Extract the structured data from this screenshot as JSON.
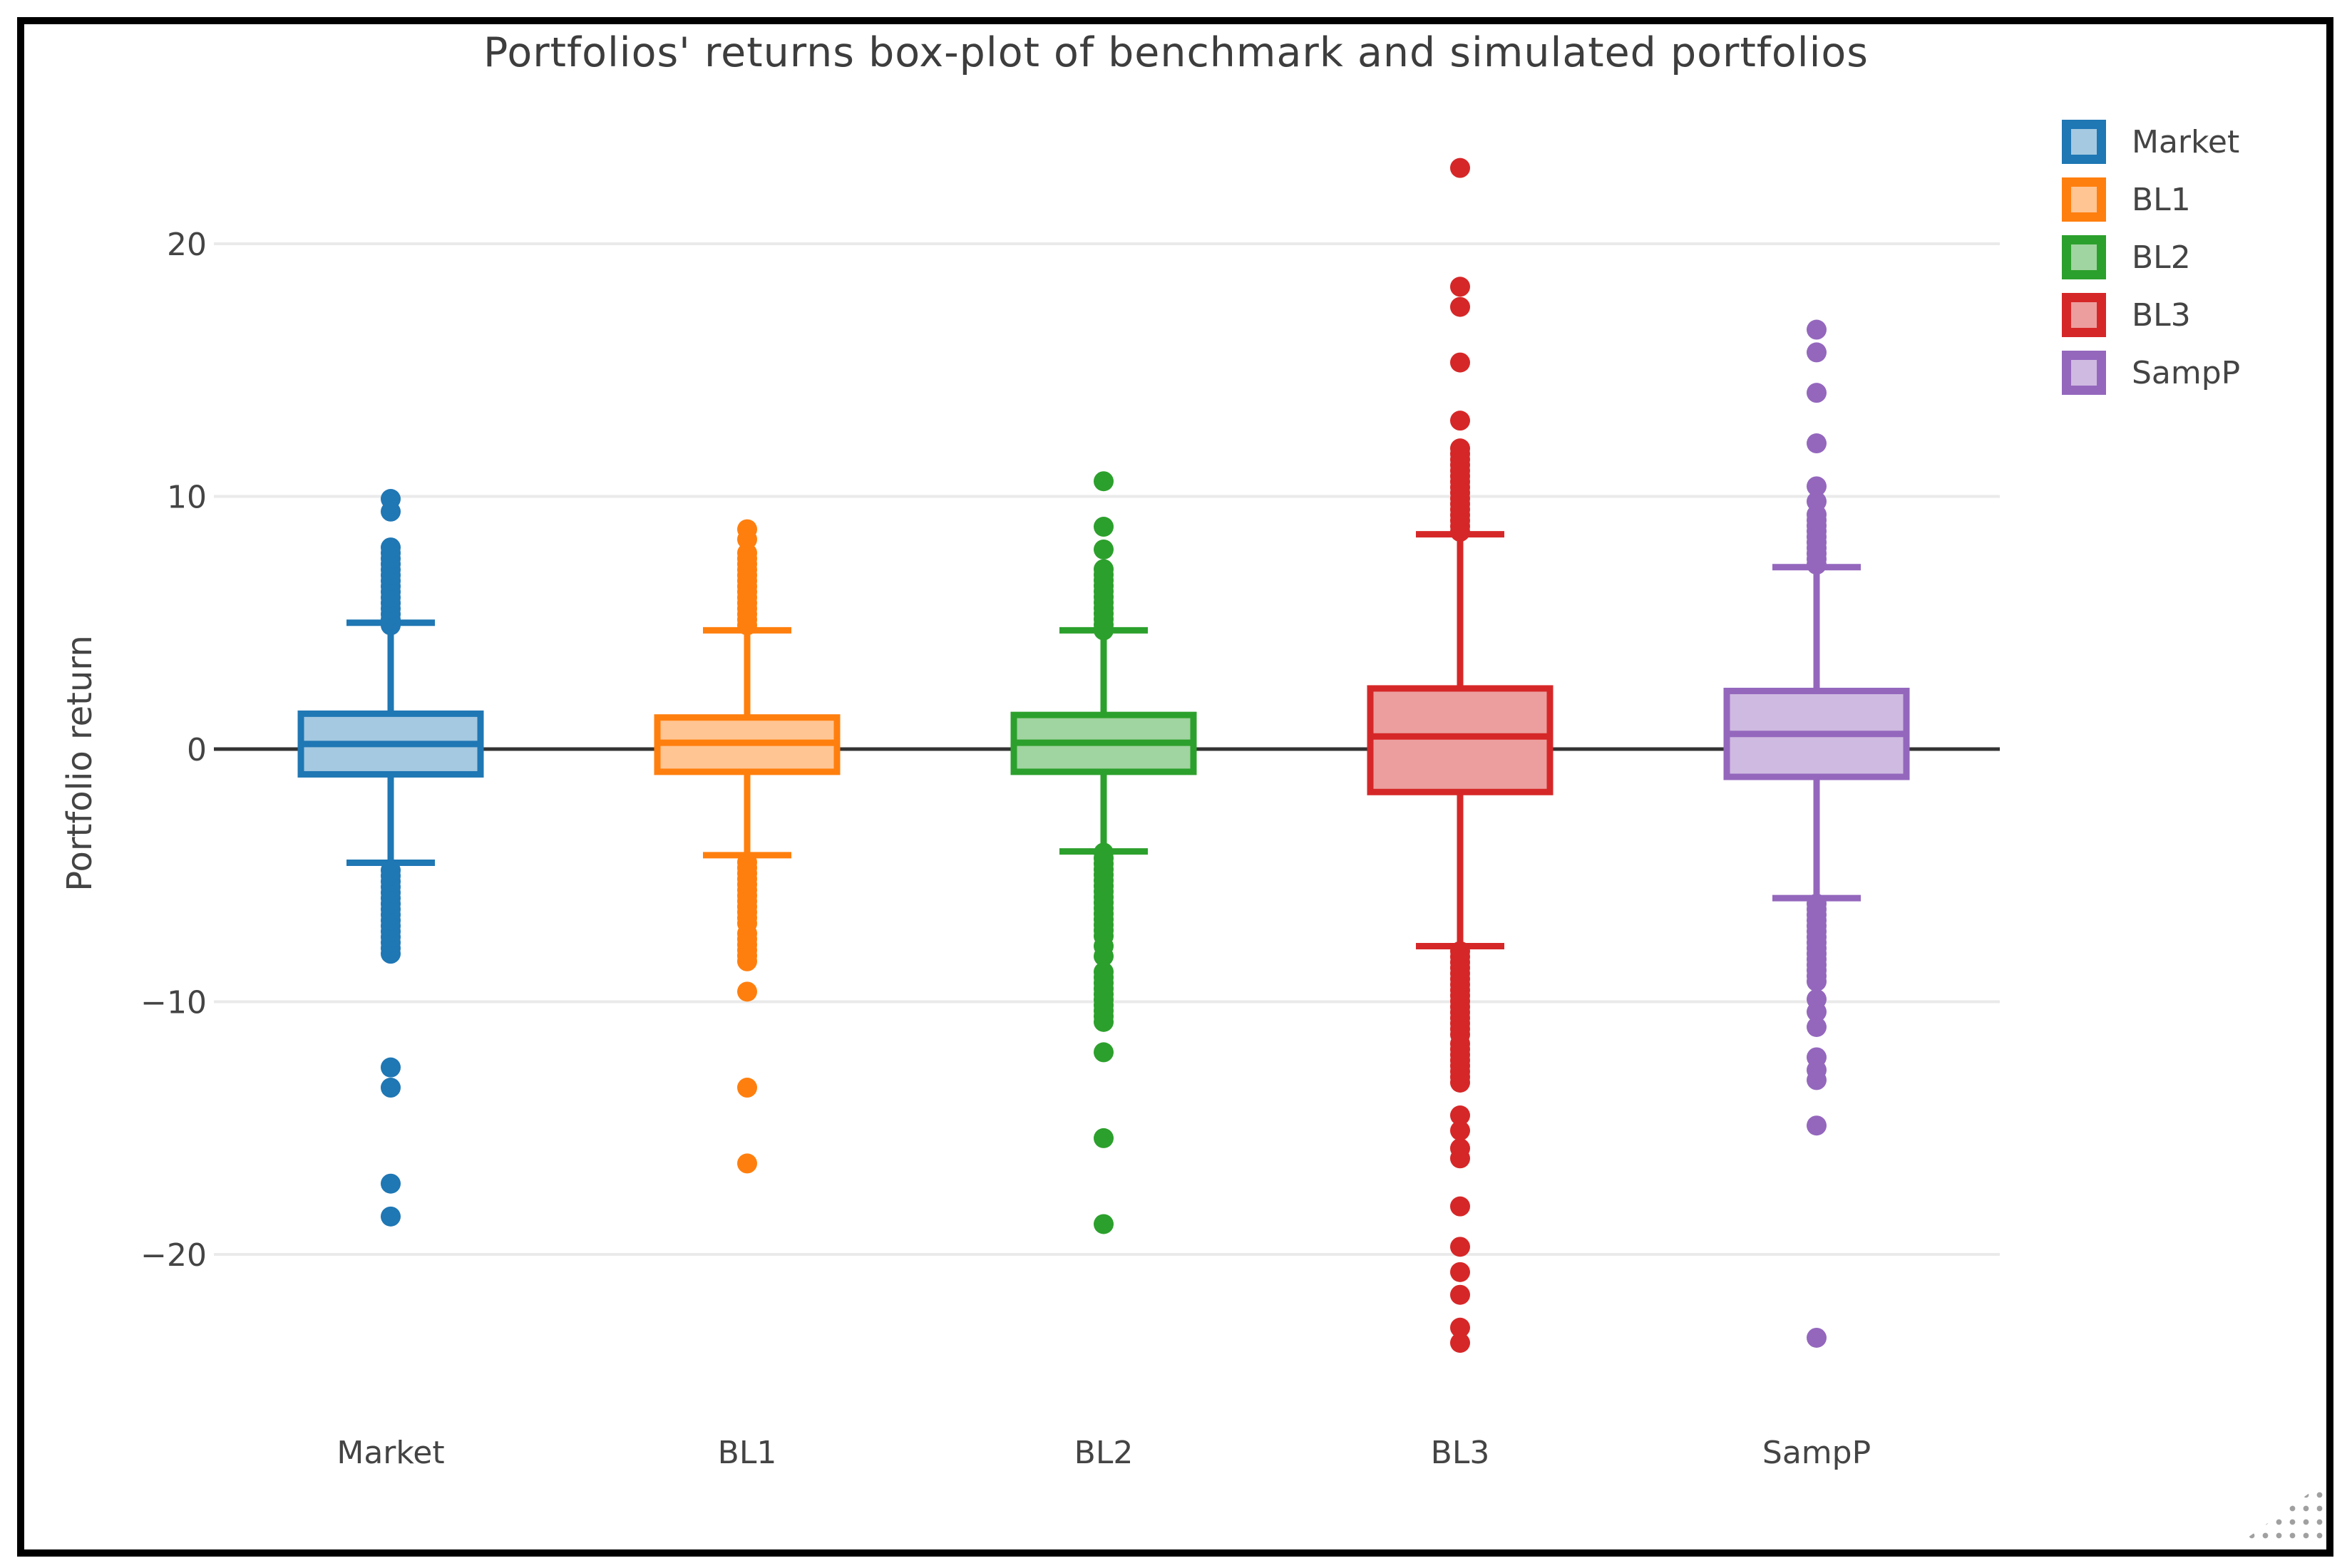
{
  "window": {
    "background": "#ffffff",
    "frame_border_color": "#000000"
  },
  "title": {
    "text": "Portfolios' returns box-plot of benchmark and simulated portfolios",
    "color": "#3d3d3d"
  },
  "y_axis": {
    "title": "Portfolio return",
    "tick_values": [
      20,
      10,
      0,
      -10,
      -20
    ],
    "tick_labels": [
      "20",
      "10",
      "0",
      "−10",
      "−20"
    ],
    "text_color": "#444444",
    "grid_color": "#eaeaea",
    "zero_line_color": "#333333"
  },
  "x_axis": {
    "labels": [
      "Market",
      "BL1",
      "BL2",
      "BL3",
      "SampP"
    ],
    "text_color": "#444444"
  },
  "legend": {
    "position": "top-right"
  },
  "chart_data": {
    "type": "box",
    "title": "Portfolios' returns box-plot of benchmark and simulated portfolios",
    "xlabel": "",
    "ylabel": "Portfolio return",
    "ylim": [
      -26,
      25
    ],
    "grid": "horizontal",
    "grid_values": [
      20,
      10,
      -10,
      -20
    ],
    "zero_line": 0,
    "legend_position": "top-right",
    "categories": [
      "Market",
      "BL1",
      "BL2",
      "BL3",
      "SampP"
    ],
    "series": [
      {
        "name": "Market",
        "line_color": "#1f77b4",
        "fill_color": "#a5c9e1",
        "q1": -1.0,
        "median": 0.2,
        "q3": 1.4,
        "whisker_low": -4.5,
        "whisker_high": 5.0,
        "outliers_high": [
          9.9,
          9.4
        ],
        "outlier_bands_high": [
          [
            4.9,
            8.1
          ]
        ],
        "outliers_low": [
          -12.6,
          -13.4,
          -17.2,
          -18.5
        ],
        "outlier_bands_low": [
          [
            -8.1,
            -4.6
          ]
        ]
      },
      {
        "name": "BL1",
        "line_color": "#ff7f0e",
        "fill_color": "#ffc593",
        "q1": -0.9,
        "median": 0.25,
        "q3": 1.25,
        "whisker_low": -4.2,
        "whisker_high": 4.7,
        "outliers_high": [
          8.7,
          8.3
        ],
        "outlier_bands_high": [
          [
            4.9,
            7.9
          ]
        ],
        "outliers_low": [
          -9.6,
          -13.4,
          -16.4
        ],
        "outlier_bands_low": [
          [
            -6.9,
            -4.3
          ],
          [
            -8.4,
            -7.3
          ]
        ]
      },
      {
        "name": "BL2",
        "line_color": "#2ca02c",
        "fill_color": "#a0d4a0",
        "q1": -0.9,
        "median": 0.25,
        "q3": 1.35,
        "whisker_low": -4.05,
        "whisker_high": 4.7,
        "outliers_high": [
          10.6,
          8.8,
          7.9
        ],
        "outlier_bands_high": [
          [
            4.7,
            7.2
          ]
        ],
        "outliers_low": [
          -7.8,
          -8.2,
          -12.0,
          -15.4,
          -18.8
        ],
        "outlier_bands_low": [
          [
            -7.4,
            -4.1
          ],
          [
            -10.8,
            -8.7
          ]
        ]
      },
      {
        "name": "BL3",
        "line_color": "#d62728",
        "fill_color": "#ec9e9e",
        "q1": -1.7,
        "median": 0.5,
        "q3": 2.4,
        "whisker_low": -7.8,
        "whisker_high": 8.5,
        "outliers_high": [
          23.0,
          18.3,
          17.5,
          15.3,
          13.0
        ],
        "outlier_bands_high": [
          [
            8.6,
            12.0
          ]
        ],
        "outliers_low": [
          -14.5,
          -15.1,
          -15.8,
          -16.2,
          -18.1,
          -19.7,
          -20.7,
          -21.6,
          -22.9,
          -23.5
        ],
        "outlier_bands_low": [
          [
            -11.3,
            -7.9
          ],
          [
            -13.2,
            -11.6
          ]
        ]
      },
      {
        "name": "SampP",
        "line_color": "#9467bd",
        "fill_color": "#cfbae1",
        "q1": -1.1,
        "median": 0.6,
        "q3": 2.3,
        "whisker_low": -5.9,
        "whisker_high": 7.2,
        "outliers_high": [
          16.6,
          15.7,
          14.1,
          12.1,
          10.4,
          9.8
        ],
        "outlier_bands_high": [
          [
            7.3,
            9.3
          ]
        ],
        "outliers_low": [
          -9.9,
          -10.4,
          -11.0,
          -12.2,
          -12.7,
          -13.1,
          -14.9,
          -23.3
        ],
        "outlier_bands_low": [
          [
            -9.2,
            -6.0
          ]
        ]
      }
    ]
  }
}
